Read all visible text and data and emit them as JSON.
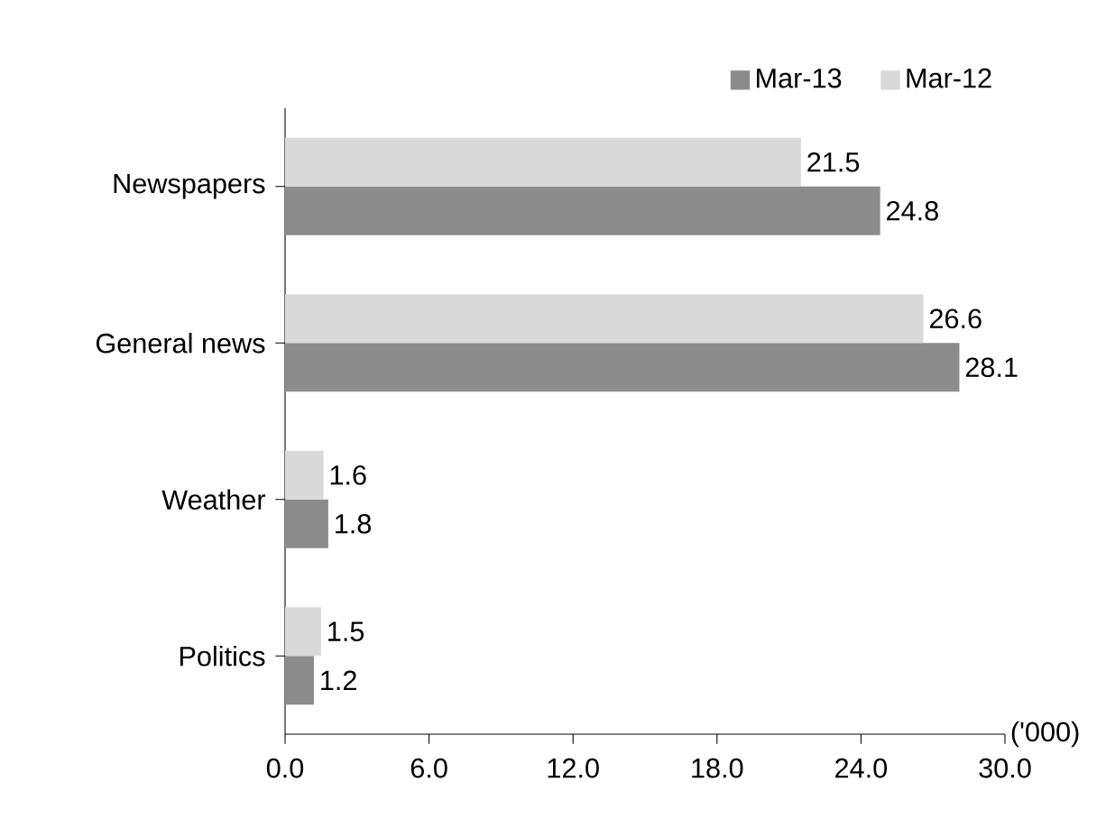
{
  "chart_data": {
    "type": "bar",
    "orientation": "horizontal",
    "categories": [
      "Newspapers",
      "General news",
      "Weather",
      "Politics"
    ],
    "series": [
      {
        "name": "Mar-13",
        "color": "#8c8c8c",
        "values": [
          24.8,
          28.1,
          1.8,
          1.2
        ]
      },
      {
        "name": "Mar-12",
        "color": "#d9d9d9",
        "values": [
          21.5,
          26.6,
          1.6,
          1.5
        ]
      }
    ],
    "xlim": [
      0,
      30
    ],
    "xticks": [
      {
        "value": 0,
        "label": "0.0"
      },
      {
        "value": 6,
        "label": "6.0"
      },
      {
        "value": 12,
        "label": "12.0"
      },
      {
        "value": 18,
        "label": "18.0"
      },
      {
        "value": 24,
        "label": "24.0"
      },
      {
        "value": 30,
        "label": "30.0"
      }
    ],
    "xlabel": "('000)",
    "data_labels": true,
    "legend": "top right",
    "grid": false
  }
}
